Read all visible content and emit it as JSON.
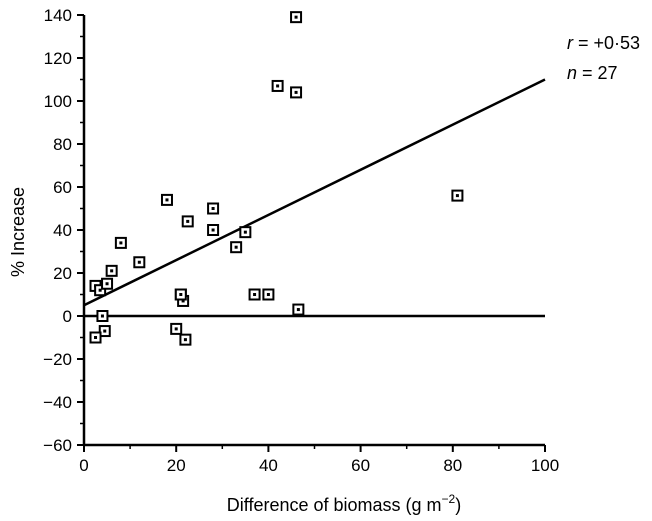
{
  "chart_data": {
    "type": "scatter",
    "title": "",
    "xlabel": "Difference of biomass (g m",
    "xlabel_superscript": "−2",
    "xlabel_suffix": ")",
    "ylabel": "% Increase",
    "xlim": [
      0,
      100
    ],
    "ylim": [
      -60,
      140
    ],
    "xticks": [
      0,
      20,
      40,
      60,
      80,
      100
    ],
    "xtick_labels": [
      "0",
      "20",
      "40",
      "60",
      "80",
      "100"
    ],
    "yticks": [
      -60,
      -40,
      -20,
      0,
      20,
      40,
      60,
      80,
      100,
      120,
      140
    ],
    "ytick_labels": [
      "−60",
      "−40",
      "−20",
      "0",
      "20",
      "40",
      "60",
      "80",
      "100",
      "120",
      "140"
    ],
    "grid": false,
    "marker": "open-square",
    "points": [
      {
        "x": 2.5,
        "y": 14
      },
      {
        "x": 3.5,
        "y": 12
      },
      {
        "x": 5,
        "y": 15
      },
      {
        "x": 6,
        "y": 21
      },
      {
        "x": 8,
        "y": 34
      },
      {
        "x": 12,
        "y": 25
      },
      {
        "x": 4,
        "y": 0
      },
      {
        "x": 4.5,
        "y": -7
      },
      {
        "x": 2.5,
        "y": -10
      },
      {
        "x": 18,
        "y": 54
      },
      {
        "x": 20,
        "y": -6
      },
      {
        "x": 21,
        "y": 10
      },
      {
        "x": 21.5,
        "y": 7
      },
      {
        "x": 22,
        "y": -11
      },
      {
        "x": 22.5,
        "y": 44
      },
      {
        "x": 28,
        "y": 50
      },
      {
        "x": 28,
        "y": 40
      },
      {
        "x": 33,
        "y": 32
      },
      {
        "x": 35,
        "y": 39
      },
      {
        "x": 37,
        "y": 10
      },
      {
        "x": 40,
        "y": 10
      },
      {
        "x": 42,
        "y": 107
      },
      {
        "x": 46,
        "y": 139
      },
      {
        "x": 46,
        "y": 104
      },
      {
        "x": 46.5,
        "y": 3
      },
      {
        "x": 81,
        "y": 56
      },
      {
        "x": 21,
        "y": 10
      }
    ],
    "regression_line": {
      "x": [
        0,
        100
      ],
      "y": [
        5,
        110
      ]
    },
    "reference_line_y": 0,
    "annotations": {
      "r_symbol": "r",
      "r_value": " = +0·53",
      "n_symbol": "n",
      "n_value": " = 27"
    }
  }
}
